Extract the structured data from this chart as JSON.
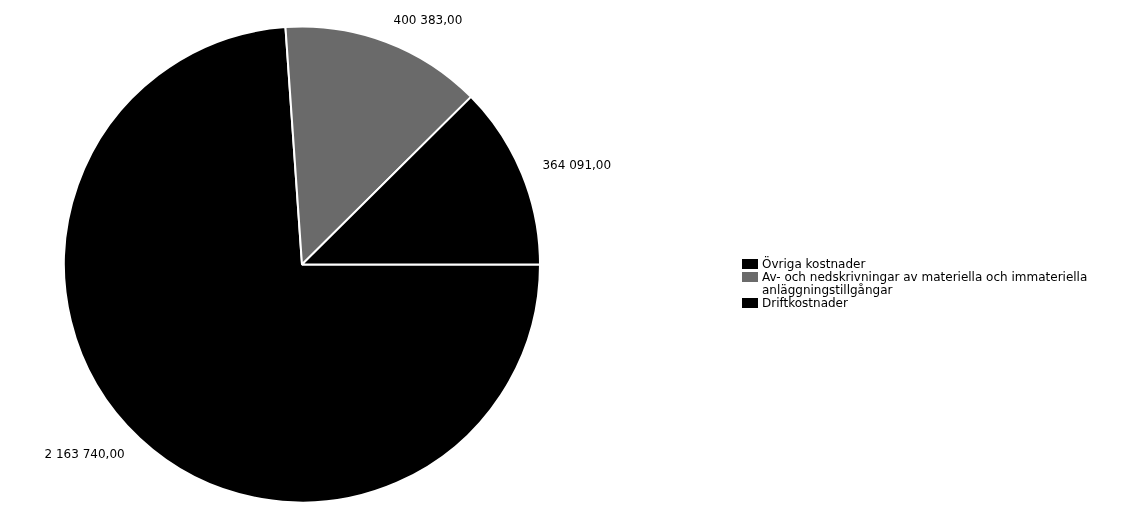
{
  "chart_data": {
    "type": "pie",
    "categories": [
      "Övriga kostnader",
      "Av- och nedskrivningar av materiella och immateriella anläggningstillgångar",
      "Driftkostnader"
    ],
    "values": [
      2163740,
      400383,
      364091
    ],
    "colors": [
      "#000000",
      "#6a6a6a",
      "#000000"
    ],
    "value_labels": [
      "2 163 740,00",
      "400 383,00",
      "364 091,00"
    ],
    "legend": "right"
  }
}
